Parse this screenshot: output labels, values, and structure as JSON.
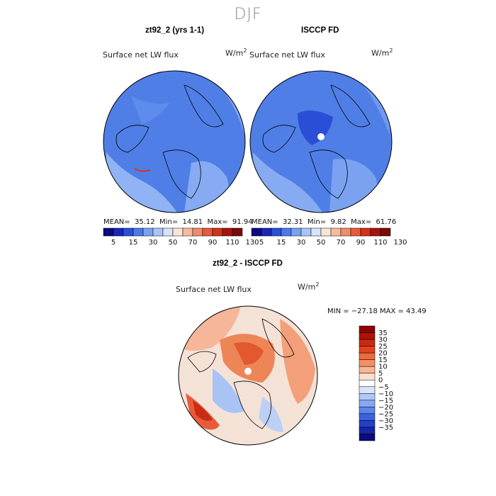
{
  "figure": {
    "season": "DJF"
  },
  "panels": [
    {
      "title": "zt92_2 (yrs 1-1)",
      "variable": "Surface net LW flux",
      "units_base": "W/m",
      "units_exp": "2",
      "stats": {
        "mean_label": "MEAN=",
        "mean": "35.12",
        "min_label": "Min=",
        "min": "14.81",
        "max_label": "Max=",
        "max": "91.94"
      }
    },
    {
      "title": "ISCCP FD",
      "variable": "Surface net LW flux",
      "units_base": "W/m",
      "units_exp": "2",
      "stats": {
        "mean_label": "MEAN=",
        "mean": "32.31",
        "min_label": "Min=",
        "min": "9.82",
        "max_label": "Max=",
        "max": "61.76"
      }
    },
    {
      "title": "zt92_2 - ISCCP FD",
      "variable": "Surface net LW flux",
      "units_base": "W/m",
      "units_exp": "2",
      "stats_line": "MIN = −27.18 MAX =  43.49"
    }
  ],
  "chart_data": [
    {
      "type": "heatmap",
      "projection": "north-polar-stereographic",
      "title": "zt92_2 (yrs 1-1)",
      "field": "Surface net LW flux",
      "units": "W/m2",
      "mean": 35.12,
      "min": 14.81,
      "max": 91.94,
      "colorbar": {
        "orientation": "horizontal",
        "levels": [
          5,
          15,
          30,
          50,
          70,
          90,
          110,
          130
        ],
        "tick_labels": [
          "5",
          "15",
          "30",
          "50",
          "70",
          "90",
          "110",
          "130"
        ],
        "colors": [
          "#0b0b7d",
          "#1a26b8",
          "#2a4fd6",
          "#4d7ae8",
          "#7aa2f0",
          "#a9c5f6",
          "#d6e4fa",
          "#fbe4d6",
          "#f9b9a0",
          "#f38a6a",
          "#e85a3a",
          "#d1331b",
          "#a8150d",
          "#7a0a06"
        ]
      }
    },
    {
      "type": "heatmap",
      "projection": "north-polar-stereographic",
      "title": "ISCCP FD",
      "field": "Surface net LW flux",
      "units": "W/m2",
      "mean": 32.31,
      "min": 9.82,
      "max": 61.76,
      "colorbar": {
        "orientation": "horizontal",
        "levels": [
          5,
          15,
          30,
          50,
          70,
          90,
          110,
          130
        ],
        "tick_labels": [
          "5",
          "15",
          "30",
          "50",
          "70",
          "90",
          "110",
          "130"
        ],
        "colors": [
          "#0b0b7d",
          "#1a26b8",
          "#2a4fd6",
          "#4d7ae8",
          "#7aa2f0",
          "#a9c5f6",
          "#d6e4fa",
          "#fbe4d6",
          "#f9b9a0",
          "#f38a6a",
          "#e85a3a",
          "#d1331b",
          "#a8150d",
          "#7a0a06"
        ]
      }
    },
    {
      "type": "heatmap",
      "projection": "north-polar-stereographic",
      "title": "zt92_2 - ISCCP FD",
      "field": "Surface net LW flux",
      "units": "W/m2",
      "min": -27.18,
      "max": 43.49,
      "colorbar": {
        "orientation": "vertical",
        "tick_labels": [
          "35",
          "30",
          "25",
          "20",
          "15",
          "10",
          "5",
          "0",
          "−5",
          "−10",
          "−15",
          "−20",
          "−25",
          "−30",
          "−35"
        ],
        "colors": [
          "#8b0000",
          "#b01208",
          "#cc2a10",
          "#e0431e",
          "#ef6a3c",
          "#f68f64",
          "#fab496",
          "#fde0cc",
          "#ffffff",
          "#d7e4fb",
          "#aec8f7",
          "#86a9f1",
          "#5c86ea",
          "#3b62de",
          "#2440c8",
          "#1626a8",
          "#0c0c7a"
        ]
      }
    }
  ],
  "colors": {
    "ocean_blue": "#4f7fe6",
    "land_blue": "#7ea6f2",
    "diff_neutral": "#f5e2d6",
    "diff_warm": "#f08a5c",
    "diff_hot": "#d8401c",
    "diff_cool": "#a9c3f4"
  }
}
